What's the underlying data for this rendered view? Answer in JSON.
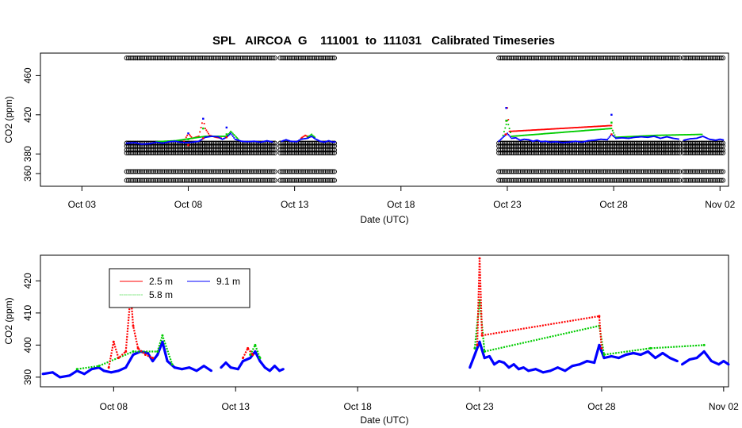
{
  "chart_data": [
    {
      "type": "scatter",
      "title": "SPL   AIRCOA  G    111001  to  111031   Calibrated Timeseries",
      "xlabel": "Date (UTC)",
      "ylabel": "CO2 (ppm)",
      "x_unit": "days since Oct 01 00:00 UTC",
      "xlim": [
        0.05,
        32.4
      ],
      "ylim": [
        347,
        483
      ],
      "xticks": [
        {
          "value": 2,
          "label": "Oct 03"
        },
        {
          "value": 7,
          "label": "Oct 08"
        },
        {
          "value": 12,
          "label": "Oct 13"
        },
        {
          "value": 17,
          "label": "Oct 18"
        },
        {
          "value": 22,
          "label": "Oct 23"
        },
        {
          "value": 27,
          "label": "Oct 28"
        },
        {
          "value": 32,
          "label": "Nov 02"
        }
      ],
      "yticks": [
        360,
        380,
        420,
        460
      ],
      "periods_with_data": [
        [
          4.1,
          13.95
        ],
        [
          21.6,
          32.2
        ]
      ],
      "gaps": [
        [
          11.1,
          11.3
        ],
        [
          30.15,
          30.25
        ]
      ],
      "reference_levels": {
        "name": "calibration / reference gas measurements",
        "color": "#000000",
        "values": [
          353,
          362,
          381,
          384,
          388,
          391,
          478
        ]
      },
      "series": [
        {
          "name": "2.5 m",
          "color": "#ff0000"
        },
        {
          "name": "5.8 m",
          "color": "#00cc00"
        },
        {
          "name": "9.1 m",
          "color": "#0000ff"
        }
      ],
      "spikes": [
        {
          "x": 7.0,
          "values": [
            389,
            395,
            401
          ]
        },
        {
          "x": 7.7,
          "values": [
            396,
            406,
            416
          ]
        },
        {
          "x": 8.8,
          "values": [
            397,
            400,
            407
          ]
        },
        {
          "x": 21.95,
          "values": [
            400,
            414,
            427
          ]
        },
        {
          "x": 26.9,
          "values": [
            400,
            412,
            420
          ]
        }
      ]
    },
    {
      "type": "line",
      "xlabel": "Date (UTC)",
      "ylabel": "CO2 (ppm)",
      "x_unit": "days since Oct 01 00:00 UTC",
      "xlim": [
        4.0,
        32.2
      ],
      "ylim": [
        387,
        428
      ],
      "xticks": [
        {
          "value": 7,
          "label": "Oct 08"
        },
        {
          "value": 12,
          "label": "Oct 13"
        },
        {
          "value": 17,
          "label": "Oct 18"
        },
        {
          "value": 22,
          "label": "Oct 23"
        },
        {
          "value": 27,
          "label": "Oct 28"
        },
        {
          "value": 32,
          "label": "Nov 02"
        }
      ],
      "yticks": [
        390,
        400,
        410,
        420
      ],
      "legend": {
        "placement": "top-left",
        "entries": [
          {
            "label": "2.5 m",
            "color": "#ff0000"
          },
          {
            "label": "9.1 m",
            "color": "#0000ff"
          },
          {
            "label": "5.8 m",
            "color": "#00cc00"
          }
        ]
      },
      "series": [
        {
          "name": "9.1 m",
          "color": "#0000ff",
          "segments": [
            [
              [
                4.1,
                391
              ],
              [
                4.5,
                391.5
              ],
              [
                4.8,
                390
              ],
              [
                5.2,
                390.5
              ],
              [
                5.5,
                392
              ],
              [
                5.8,
                391
              ],
              [
                6.1,
                392.5
              ],
              [
                6.4,
                393
              ],
              [
                6.6,
                392
              ],
              [
                6.9,
                391.5
              ],
              [
                7.2,
                392
              ],
              [
                7.5,
                393
              ],
              [
                7.8,
                397
              ],
              [
                8.1,
                398
              ],
              [
                8.4,
                397.5
              ],
              [
                8.6,
                395
              ],
              [
                8.8,
                397
              ],
              [
                9.0,
                401
              ],
              [
                9.2,
                395
              ],
              [
                9.5,
                393
              ],
              [
                9.8,
                392.5
              ],
              [
                10.1,
                393
              ],
              [
                10.4,
                392
              ],
              [
                10.7,
                393.5
              ],
              [
                11.0,
                392
              ]
            ],
            [
              [
                11.4,
                393
              ],
              [
                11.6,
                394.5
              ],
              [
                11.8,
                393
              ],
              [
                12.1,
                392.5
              ],
              [
                12.3,
                395
              ],
              [
                12.6,
                396
              ],
              [
                12.8,
                398
              ],
              [
                13.0,
                395
              ],
              [
                13.2,
                393
              ],
              [
                13.4,
                392
              ],
              [
                13.6,
                393.5
              ],
              [
                13.8,
                392
              ],
              [
                13.95,
                392.5
              ]
            ],
            [
              [
                21.6,
                393
              ],
              [
                21.8,
                397
              ],
              [
                22.0,
                401
              ],
              [
                22.2,
                396
              ],
              [
                22.4,
                396.5
              ],
              [
                22.6,
                394
              ],
              [
                22.8,
                395
              ],
              [
                23.0,
                394.5
              ],
              [
                23.2,
                393
              ],
              [
                23.4,
                394
              ],
              [
                23.6,
                392.5
              ],
              [
                23.8,
                393
              ],
              [
                24.0,
                392
              ],
              [
                24.3,
                392.5
              ],
              [
                24.6,
                391.5
              ],
              [
                24.9,
                392
              ],
              [
                25.2,
                393
              ],
              [
                25.5,
                392
              ],
              [
                25.8,
                393.5
              ],
              [
                26.1,
                394
              ],
              [
                26.4,
                395
              ],
              [
                26.7,
                394.5
              ],
              [
                26.9,
                400
              ],
              [
                27.1,
                396
              ],
              [
                27.4,
                396.5
              ],
              [
                27.7,
                396
              ],
              [
                28.0,
                397
              ],
              [
                28.3,
                397.5
              ],
              [
                28.6,
                397
              ],
              [
                28.9,
                398
              ],
              [
                29.2,
                396
              ],
              [
                29.5,
                397.5
              ],
              [
                29.8,
                396
              ],
              [
                30.1,
                395
              ]
            ],
            [
              [
                30.3,
                394
              ],
              [
                30.6,
                395.5
              ],
              [
                30.9,
                396
              ],
              [
                31.2,
                398
              ],
              [
                31.5,
                395
              ],
              [
                31.8,
                394
              ],
              [
                32.0,
                395
              ],
              [
                32.2,
                394
              ]
            ]
          ]
        },
        {
          "name": "5.8 m",
          "color": "#00cc00",
          "segments": [
            [
              [
                5.5,
                392.5
              ],
              [
                6.4,
                393.5
              ],
              [
                7.8,
                398
              ],
              [
                8.8,
                398
              ],
              [
                9.0,
                403
              ],
              [
                9.4,
                394
              ]
            ],
            [
              [
                12.6,
                397
              ],
              [
                12.8,
                400
              ],
              [
                13.0,
                396
              ]
            ],
            [
              [
                21.8,
                399
              ],
              [
                22.0,
                414
              ],
              [
                22.2,
                398
              ],
              [
                26.9,
                406
              ],
              [
                27.1,
                397
              ],
              [
                29.0,
                399
              ],
              [
                31.2,
                400
              ]
            ]
          ]
        },
        {
          "name": "2.5 m",
          "color": "#ff0000",
          "segments": [
            [
              [
                6.8,
                393
              ],
              [
                7.0,
                401
              ],
              [
                7.2,
                396
              ],
              [
                7.5,
                398
              ],
              [
                7.7,
                416
              ],
              [
                7.8,
                406
              ],
              [
                8.0,
                399
              ],
              [
                8.3,
                397
              ],
              [
                8.6,
                396
              ]
            ],
            [
              [
                12.3,
                396
              ],
              [
                12.5,
                399
              ],
              [
                12.7,
                397
              ]
            ],
            [
              [
                21.9,
                400
              ],
              [
                22.0,
                427
              ],
              [
                22.1,
                403
              ],
              [
                26.9,
                409
              ],
              [
                27.0,
                399
              ]
            ]
          ]
        }
      ]
    }
  ]
}
